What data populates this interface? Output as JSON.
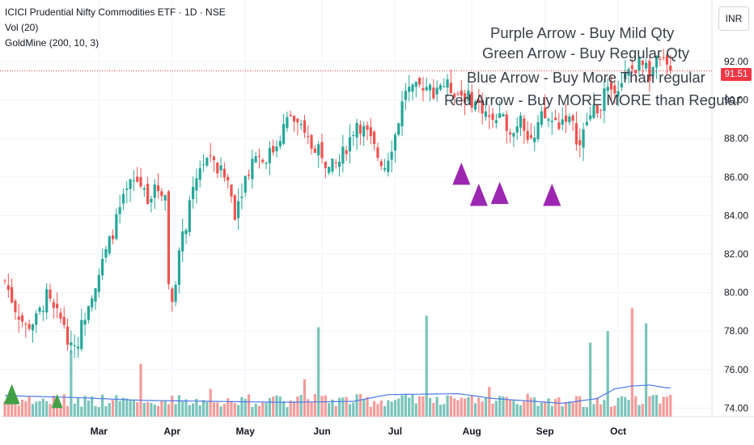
{
  "legend": {
    "symbol": "ICICI Prudential Nifty Commodities ETF · 1D · NSE",
    "vol": "Vol (20)",
    "indicator": "GoldMine (200, 10, 3)"
  },
  "currency_button": "INR",
  "last_price": "91.51",
  "annotations": [
    "Purple Arrow - Buy Mild Qty",
    "Green Arrow - Buy Regular Qty",
    "Blue Arrow - Buy More Than regular",
    "Red Arrow - Buy MORE MORE than Regular"
  ],
  "chart_data": {
    "type": "candlestick",
    "ylim": [
      73.6,
      93.8
    ],
    "y_ticks": [
      "92.00",
      "90.00",
      "88.00",
      "86.00",
      "84.00",
      "82.00",
      "80.00",
      "78.00",
      "76.00",
      "74.00"
    ],
    "x_ticks": [
      "Mar",
      "Apr",
      "May",
      "Jun",
      "Jul",
      "Aug",
      "Sep",
      "Oct"
    ],
    "grid": true,
    "colors": {
      "up": "#26a69a",
      "down": "#ef5350",
      "vol_up": "#7ac4bb",
      "vol_down": "#f49c9a",
      "vol_ma": "#4b7bec",
      "purple_arrow": "#9c27b0",
      "green_arrow": "#43a047"
    },
    "close_path": [
      [
        0,
        80.6
      ],
      [
        3,
        79.2
      ],
      [
        6,
        78.2
      ],
      [
        9,
        78.6
      ],
      [
        12,
        79.8
      ],
      [
        14,
        79.0
      ],
      [
        17,
        78.4
      ],
      [
        19,
        77.0
      ],
      [
        21,
        77.6
      ],
      [
        24,
        79.6
      ],
      [
        27,
        81.0
      ],
      [
        30,
        82.6
      ],
      [
        33,
        84.3
      ],
      [
        36,
        85.6
      ],
      [
        38,
        85.8
      ],
      [
        41,
        85.0
      ],
      [
        44,
        85.4
      ],
      [
        46,
        85.2
      ],
      [
        47,
        80.4
      ],
      [
        48,
        79.6
      ],
      [
        50,
        82.0
      ],
      [
        53,
        84.4
      ],
      [
        56,
        86.6
      ],
      [
        58,
        86.9
      ],
      [
        61,
        86.4
      ],
      [
        64,
        85.8
      ],
      [
        66,
        84.2
      ],
      [
        69,
        86.0
      ],
      [
        72,
        87.3
      ],
      [
        74,
        86.9
      ],
      [
        77,
        87.4
      ],
      [
        80,
        88.6
      ],
      [
        82,
        89.2
      ],
      [
        85,
        88.4
      ],
      [
        88,
        87.6
      ],
      [
        90,
        87.6
      ],
      [
        93,
        86.4
      ],
      [
        96,
        86.8
      ],
      [
        99,
        88.0
      ],
      [
        101,
        88.9
      ],
      [
        104,
        88.2
      ],
      [
        107,
        87.1
      ],
      [
        109,
        86.6
      ],
      [
        112,
        88.2
      ],
      [
        115,
        90.6
      ],
      [
        117,
        90.4
      ],
      [
        120,
        90.8
      ],
      [
        123,
        90.5
      ],
      [
        125,
        90.9
      ],
      [
        128,
        90.6
      ],
      [
        131,
        90.3
      ],
      [
        134,
        90.0
      ],
      [
        137,
        89.6
      ],
      [
        139,
        89.1
      ],
      [
        141,
        89.0
      ],
      [
        144,
        88.8
      ],
      [
        146,
        88.3
      ],
      [
        148,
        89.4
      ],
      [
        150,
        88.2
      ],
      [
        152,
        87.9
      ],
      [
        154,
        89.1
      ],
      [
        157,
        88.9
      ],
      [
        159,
        88.8
      ],
      [
        161,
        89.2
      ],
      [
        163,
        88.6
      ],
      [
        165,
        87.6
      ],
      [
        167,
        88.9
      ],
      [
        170,
        89.6
      ],
      [
        172,
        90.2
      ],
      [
        174,
        90.6
      ],
      [
        177,
        91.0
      ],
      [
        179,
        91.4
      ],
      [
        182,
        91.9
      ],
      [
        185,
        91.4
      ],
      [
        187,
        91.9
      ],
      [
        189,
        91.9
      ],
      [
        191,
        91.51
      ]
    ],
    "volume_path": [
      [
        0,
        74.65
      ],
      [
        20,
        74.55
      ],
      [
        40,
        74.4
      ],
      [
        60,
        74.35
      ],
      [
        80,
        74.3
      ],
      [
        100,
        74.35
      ],
      [
        110,
        74.7
      ],
      [
        130,
        74.75
      ],
      [
        140,
        74.5
      ],
      [
        160,
        74.25
      ],
      [
        170,
        74.5
      ],
      [
        175,
        75.0
      ],
      [
        180,
        75.15
      ],
      [
        185,
        75.2
      ],
      [
        190,
        75.05
      ]
    ],
    "volume_spikes": [
      {
        "day": 19,
        "height": 77.0
      },
      {
        "day": 39,
        "height": 76.3
      },
      {
        "day": 59,
        "height": 75.0
      },
      {
        "day": 86,
        "height": 75.5
      },
      {
        "day": 90,
        "height": 78.2
      },
      {
        "day": 121,
        "height": 78.8
      },
      {
        "day": 139,
        "height": 75.1
      },
      {
        "day": 168,
        "height": 77.4
      },
      {
        "day": 173,
        "height": 78.0
      },
      {
        "day": 180,
        "height": 79.2
      },
      {
        "day": 184,
        "height": 78.4
      }
    ],
    "purple_arrow_days": [
      131,
      136,
      142,
      157
    ],
    "purple_arrow_levels": [
      85.6,
      84.5,
      84.6,
      84.5
    ],
    "green_arrow_days": [
      2,
      15
    ],
    "green_arrow_levels": [
      74.2,
      74.0
    ],
    "last_value": 91.51
  }
}
